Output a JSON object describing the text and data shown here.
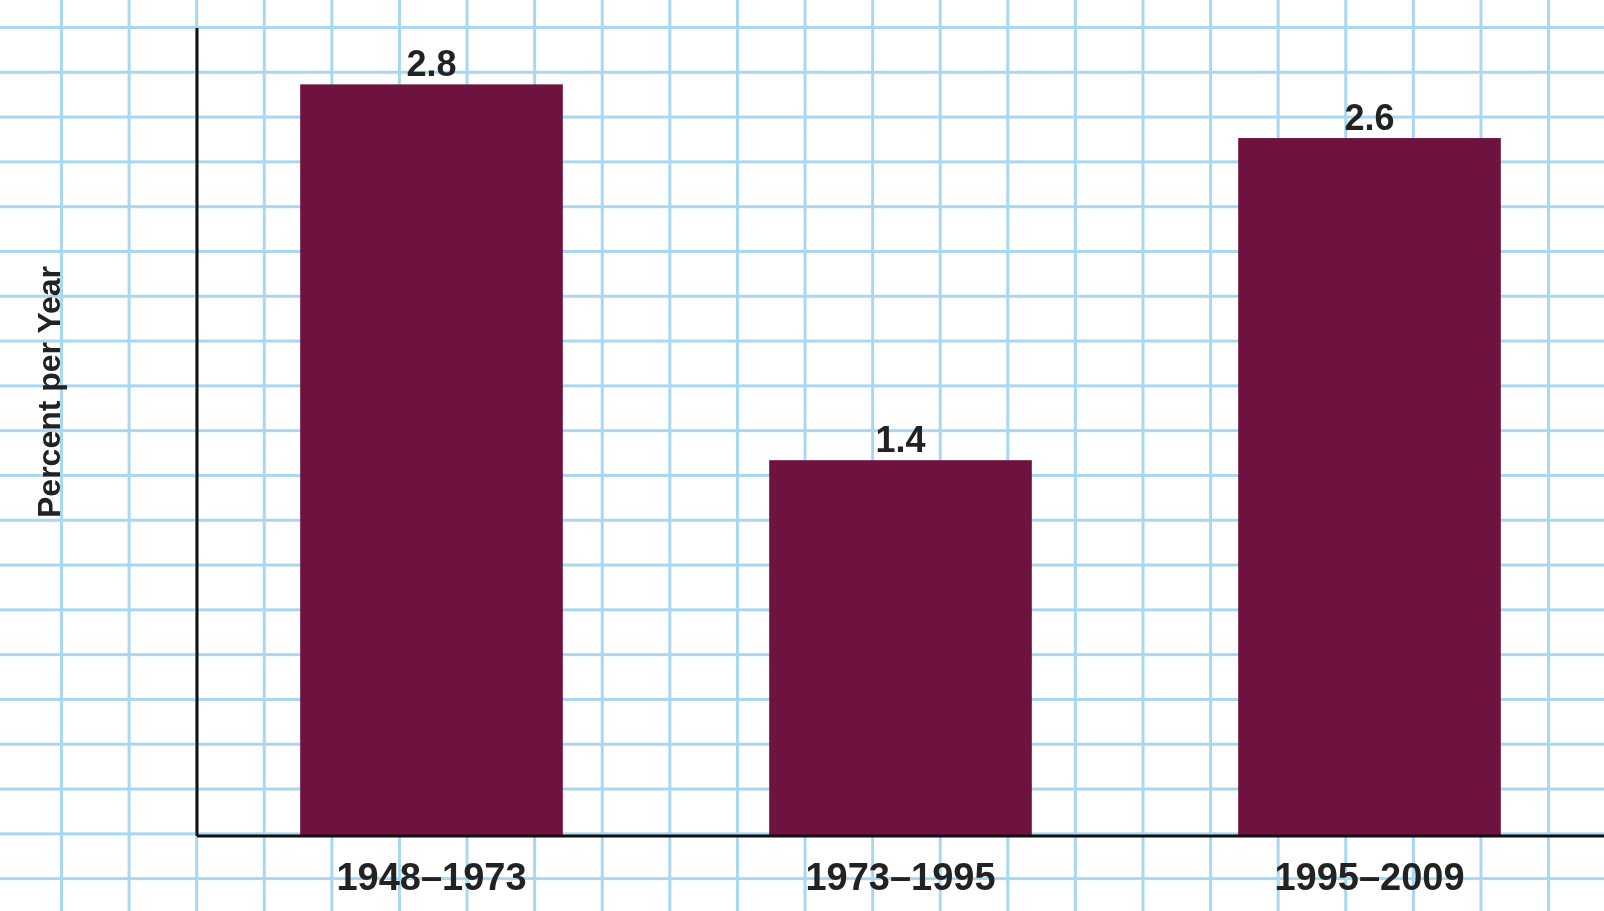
{
  "chart_data": {
    "type": "bar",
    "ylabel": "Percent per Year",
    "categories": [
      "1948–1973",
      "1973–1995",
      "1995–2009"
    ],
    "values": [
      2.8,
      1.4,
      2.6
    ],
    "color": "#6e1340",
    "data_labels": true
  }
}
